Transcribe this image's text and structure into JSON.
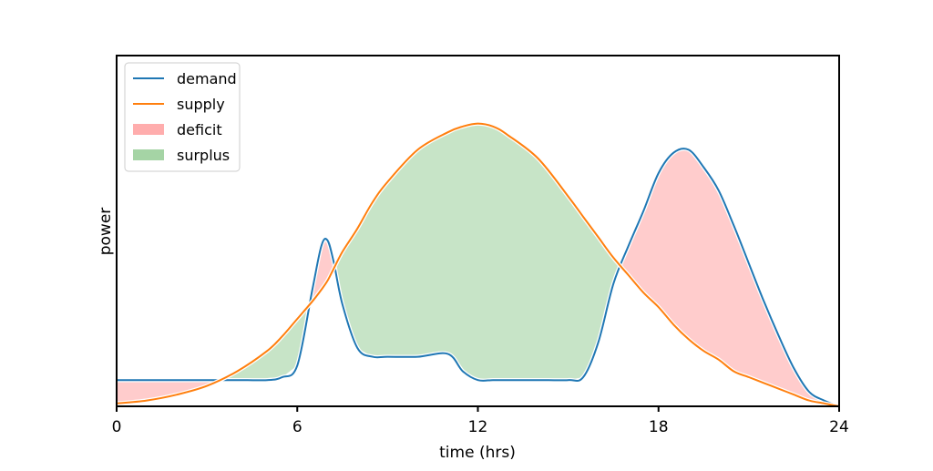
{
  "chart_data": {
    "type": "area",
    "title": "",
    "xlabel": "time (hrs)",
    "ylabel": "power",
    "xlim": [
      0,
      24
    ],
    "ylim": [
      0,
      1
    ],
    "xticks": [
      0,
      6,
      12,
      18,
      24
    ],
    "x": [
      0,
      1,
      2,
      3,
      4,
      5,
      5.5,
      6,
      6.5,
      6.8,
      7,
      7.2,
      7.5,
      8,
      8.5,
      9,
      10,
      11,
      11.5,
      12,
      12.5,
      13,
      14,
      15,
      15.5,
      16,
      16.5,
      17,
      17.5,
      18,
      18.5,
      19,
      19.5,
      20,
      20.5,
      21,
      21.5,
      22,
      22.5,
      23,
      23.5,
      24
    ],
    "series": [
      {
        "name": "demand",
        "color": "#1f77b4",
        "values": [
          0.09,
          0.09,
          0.09,
          0.09,
          0.09,
          0.09,
          0.1,
          0.14,
          0.4,
          0.55,
          0.57,
          0.5,
          0.35,
          0.2,
          0.17,
          0.17,
          0.17,
          0.18,
          0.12,
          0.09,
          0.09,
          0.09,
          0.09,
          0.09,
          0.1,
          0.22,
          0.42,
          0.55,
          0.67,
          0.8,
          0.87,
          0.88,
          0.82,
          0.74,
          0.62,
          0.49,
          0.36,
          0.24,
          0.13,
          0.05,
          0.02,
          0.0
        ]
      },
      {
        "name": "supply",
        "color": "#ff7f0e",
        "values": [
          0.01,
          0.02,
          0.04,
          0.07,
          0.12,
          0.19,
          0.24,
          0.3,
          0.36,
          0.4,
          0.43,
          0.47,
          0.53,
          0.61,
          0.7,
          0.77,
          0.88,
          0.94,
          0.96,
          0.97,
          0.96,
          0.93,
          0.85,
          0.72,
          0.65,
          0.58,
          0.51,
          0.45,
          0.39,
          0.34,
          0.28,
          0.23,
          0.19,
          0.16,
          0.12,
          0.1,
          0.08,
          0.06,
          0.04,
          0.02,
          0.01,
          0.0
        ]
      }
    ],
    "fills": [
      {
        "name": "deficit",
        "color": "#ff9999",
        "alpha": 0.5,
        "condition": "demand > supply"
      },
      {
        "name": "surplus",
        "color": "#8fc98f",
        "alpha": 0.5,
        "condition": "supply > demand"
      }
    ],
    "legend": {
      "placement": "top-left",
      "entries": [
        {
          "label": "demand",
          "kind": "line",
          "color": "#1f77b4"
        },
        {
          "label": "supply",
          "kind": "line",
          "color": "#ff7f0e"
        },
        {
          "label": "deficit",
          "kind": "patch",
          "color": "#ff9999"
        },
        {
          "label": "surplus",
          "kind": "patch",
          "color": "#8fc98f"
        }
      ]
    },
    "yticks_visible": false,
    "grid": false
  }
}
